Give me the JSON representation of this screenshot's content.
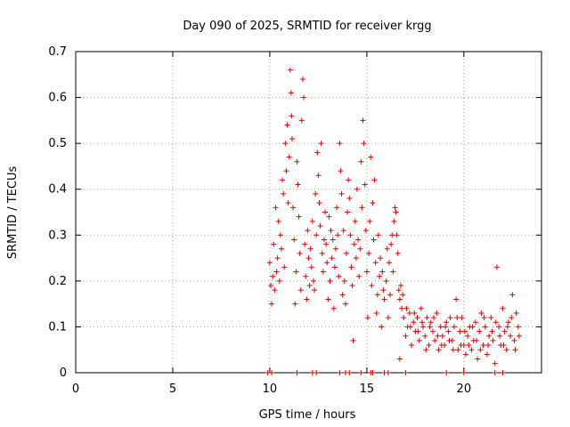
{
  "chart_data": {
    "type": "scatter",
    "title": "Day 090 of 2025, SRMTID for receiver krgg",
    "xlabel": "GPS time / hours",
    "ylabel": "SRMTID / TECUs",
    "xlim": [
      0,
      24
    ],
    "ylim": [
      0,
      0.7
    ],
    "xticks": [
      0,
      5,
      10,
      15,
      20
    ],
    "yticks": [
      0,
      0.1,
      0.2,
      0.3,
      0.4,
      0.5,
      0.6,
      0.7
    ],
    "xtick_labels": [
      "0",
      "5",
      "10",
      "15",
      "20"
    ],
    "ytick_labels": [
      "0",
      "0.1",
      "0.2",
      "0.3",
      "0.4",
      "0.5",
      "0.6",
      "0.7"
    ],
    "grid": true,
    "marker": "+",
    "color": "#e00000",
    "series": [
      {
        "name": "SRMTID",
        "points": [
          [
            9.9,
            0.0
          ],
          [
            10.1,
            0.0
          ],
          [
            11.4,
            0.0
          ],
          [
            12.2,
            0.0
          ],
          [
            12.4,
            0.0
          ],
          [
            13.6,
            0.0
          ],
          [
            13.9,
            0.0
          ],
          [
            14.1,
            0.0
          ],
          [
            14.7,
            0.0
          ],
          [
            15.2,
            0.0
          ],
          [
            15.3,
            0.0
          ],
          [
            15.9,
            0.0
          ],
          [
            16.1,
            0.0
          ],
          [
            17.0,
            0.0
          ],
          [
            19.1,
            0.0
          ],
          [
            20.0,
            0.0
          ],
          [
            21.6,
            0.0
          ],
          [
            22.0,
            0.0
          ],
          [
            16.7,
            0.03
          ],
          [
            10.0,
            0.24
          ],
          [
            10.05,
            0.19
          ],
          [
            10.1,
            0.15
          ],
          [
            10.15,
            0.21
          ],
          [
            10.2,
            0.28
          ],
          [
            10.25,
            0.18
          ],
          [
            10.3,
            0.36
          ],
          [
            10.35,
            0.22
          ],
          [
            10.4,
            0.25
          ],
          [
            10.45,
            0.33
          ],
          [
            10.5,
            0.2
          ],
          [
            10.55,
            0.3
          ],
          [
            10.6,
            0.27
          ],
          [
            10.65,
            0.42
          ],
          [
            10.7,
            0.39
          ],
          [
            10.75,
            0.23
          ],
          [
            10.8,
            0.5
          ],
          [
            10.85,
            0.44
          ],
          [
            10.9,
            0.54
          ],
          [
            10.95,
            0.37
          ],
          [
            11.0,
            0.47
          ],
          [
            11.05,
            0.66
          ],
          [
            11.1,
            0.61
          ],
          [
            11.12,
            0.56
          ],
          [
            11.15,
            0.51
          ],
          [
            11.2,
            0.36
          ],
          [
            11.25,
            0.29
          ],
          [
            11.3,
            0.15
          ],
          [
            11.35,
            0.22
          ],
          [
            11.4,
            0.46
          ],
          [
            11.45,
            0.41
          ],
          [
            11.5,
            0.34
          ],
          [
            11.55,
            0.26
          ],
          [
            11.6,
            0.18
          ],
          [
            11.65,
            0.55
          ],
          [
            11.7,
            0.64
          ],
          [
            11.75,
            0.6
          ],
          [
            11.8,
            0.28
          ],
          [
            11.85,
            0.21
          ],
          [
            11.9,
            0.16
          ],
          [
            11.95,
            0.31
          ],
          [
            12.0,
            0.25
          ],
          [
            12.05,
            0.19
          ],
          [
            12.1,
            0.27
          ],
          [
            12.15,
            0.23
          ],
          [
            12.2,
            0.33
          ],
          [
            12.25,
            0.2
          ],
          [
            12.3,
            0.18
          ],
          [
            12.35,
            0.39
          ],
          [
            12.4,
            0.3
          ],
          [
            12.45,
            0.48
          ],
          [
            12.5,
            0.43
          ],
          [
            12.55,
            0.37
          ],
          [
            12.6,
            0.32
          ],
          [
            12.65,
            0.5
          ],
          [
            12.7,
            0.26
          ],
          [
            12.75,
            0.22
          ],
          [
            12.8,
            0.29
          ],
          [
            12.85,
            0.35
          ],
          [
            12.9,
            0.28
          ],
          [
            12.95,
            0.24
          ],
          [
            13.0,
            0.16
          ],
          [
            13.05,
            0.34
          ],
          [
            13.1,
            0.2
          ],
          [
            13.15,
            0.31
          ],
          [
            13.2,
            0.25
          ],
          [
            13.25,
            0.29
          ],
          [
            13.3,
            0.14
          ],
          [
            13.35,
            0.23
          ],
          [
            13.4,
            0.27
          ],
          [
            13.45,
            0.36
          ],
          [
            13.5,
            0.3
          ],
          [
            13.55,
            0.21
          ],
          [
            13.6,
            0.5
          ],
          [
            13.65,
            0.44
          ],
          [
            13.7,
            0.39
          ],
          [
            13.75,
            0.17
          ],
          [
            13.8,
            0.31
          ],
          [
            13.85,
            0.2
          ],
          [
            13.9,
            0.15
          ],
          [
            13.95,
            0.26
          ],
          [
            14.0,
            0.35
          ],
          [
            14.05,
            0.42
          ],
          [
            14.1,
            0.38
          ],
          [
            14.15,
            0.3
          ],
          [
            14.2,
            0.23
          ],
          [
            14.25,
            0.19
          ],
          [
            14.3,
            0.07
          ],
          [
            14.35,
            0.28
          ],
          [
            14.4,
            0.33
          ],
          [
            14.45,
            0.25
          ],
          [
            14.5,
            0.4
          ],
          [
            14.55,
            0.29
          ],
          [
            14.6,
            0.21
          ],
          [
            14.65,
            0.27
          ],
          [
            14.7,
            0.46
          ],
          [
            14.75,
            0.36
          ],
          [
            14.8,
            0.55
          ],
          [
            14.85,
            0.5
          ],
          [
            14.9,
            0.41
          ],
          [
            14.95,
            0.31
          ],
          [
            15.0,
            0.22
          ],
          [
            15.05,
            0.12
          ],
          [
            15.1,
            0.26
          ],
          [
            15.15,
            0.33
          ],
          [
            15.2,
            0.47
          ],
          [
            15.25,
            0.19
          ],
          [
            15.3,
            0.37
          ],
          [
            15.35,
            0.29
          ],
          [
            15.4,
            0.42
          ],
          [
            15.45,
            0.24
          ],
          [
            15.5,
            0.13
          ],
          [
            15.55,
            0.17
          ],
          [
            15.6,
            0.3
          ],
          [
            15.65,
            0.21
          ],
          [
            15.7,
            0.25
          ],
          [
            15.75,
            0.1
          ],
          [
            15.8,
            0.22
          ],
          [
            15.85,
            0.18
          ],
          [
            15.9,
            0.16
          ],
          [
            16.0,
            0.2
          ],
          [
            16.05,
            0.27
          ],
          [
            16.1,
            0.12
          ],
          [
            16.15,
            0.24
          ],
          [
            16.2,
            0.17
          ],
          [
            16.25,
            0.28
          ],
          [
            16.3,
            0.3
          ],
          [
            16.35,
            0.22
          ],
          [
            16.4,
            0.33
          ],
          [
            16.45,
            0.36
          ],
          [
            16.5,
            0.35
          ],
          [
            16.55,
            0.3
          ],
          [
            16.6,
            0.26
          ],
          [
            16.65,
            0.18
          ],
          [
            16.7,
            0.16
          ],
          [
            16.75,
            0.19
          ],
          [
            16.8,
            0.14
          ],
          [
            16.85,
            0.17
          ],
          [
            16.9,
            0.12
          ],
          [
            17.0,
            0.08
          ],
          [
            17.1,
            0.1
          ],
          [
            17.2,
            0.13
          ],
          [
            17.3,
            0.06
          ],
          [
            17.4,
            0.11
          ],
          [
            17.5,
            0.09
          ],
          [
            17.6,
            0.12
          ],
          [
            17.7,
            0.07
          ],
          [
            17.8,
            0.14
          ],
          [
            17.9,
            0.1
          ],
          [
            18.0,
            0.08
          ],
          [
            18.1,
            0.12
          ],
          [
            18.2,
            0.06
          ],
          [
            18.3,
            0.11
          ],
          [
            18.4,
            0.09
          ],
          [
            18.5,
            0.07
          ],
          [
            18.6,
            0.13
          ],
          [
            18.7,
            0.05
          ],
          [
            18.8,
            0.1
          ],
          [
            18.9,
            0.08
          ],
          [
            19.0,
            0.06
          ],
          [
            19.1,
            0.11
          ],
          [
            19.2,
            0.09
          ],
          [
            19.3,
            0.12
          ],
          [
            19.4,
            0.07
          ],
          [
            19.5,
            0.1
          ],
          [
            19.6,
            0.16
          ],
          [
            19.7,
            0.05
          ],
          [
            19.8,
            0.09
          ],
          [
            19.9,
            0.12
          ],
          [
            20.0,
            0.06
          ],
          [
            20.1,
            0.04
          ],
          [
            20.2,
            0.08
          ],
          [
            20.3,
            0.1
          ],
          [
            20.4,
            0.05
          ],
          [
            20.5,
            0.07
          ],
          [
            20.6,
            0.11
          ],
          [
            20.7,
            0.03
          ],
          [
            20.8,
            0.09
          ],
          [
            20.9,
            0.13
          ],
          [
            21.0,
            0.06
          ],
          [
            21.1,
            0.1
          ],
          [
            21.2,
            0.04
          ],
          [
            21.3,
            0.08
          ],
          [
            21.4,
            0.12
          ],
          [
            21.5,
            0.07
          ],
          [
            21.6,
            0.02
          ],
          [
            21.7,
            0.23
          ],
          [
            21.8,
            0.1
          ],
          [
            21.9,
            0.06
          ],
          [
            22.0,
            0.14
          ],
          [
            22.1,
            0.09
          ],
          [
            22.2,
            0.05
          ],
          [
            22.3,
            0.11
          ],
          [
            22.4,
            0.08
          ],
          [
            22.5,
            0.17
          ],
          [
            22.6,
            0.07
          ],
          [
            22.7,
            0.13
          ],
          [
            22.8,
            0.1
          ],
          [
            17.05,
            0.14
          ],
          [
            17.25,
            0.1
          ],
          [
            17.45,
            0.13
          ],
          [
            17.65,
            0.09
          ],
          [
            17.85,
            0.11
          ],
          [
            18.05,
            0.05
          ],
          [
            18.25,
            0.1
          ],
          [
            18.45,
            0.12
          ],
          [
            18.65,
            0.08
          ],
          [
            18.85,
            0.06
          ],
          [
            19.05,
            0.1
          ],
          [
            19.25,
            0.07
          ],
          [
            19.45,
            0.05
          ],
          [
            19.65,
            0.12
          ],
          [
            19.85,
            0.06
          ],
          [
            20.05,
            0.09
          ],
          [
            20.25,
            0.06
          ],
          [
            20.45,
            0.1
          ],
          [
            20.65,
            0.07
          ],
          [
            20.85,
            0.05
          ],
          [
            21.05,
            0.12
          ],
          [
            21.25,
            0.06
          ],
          [
            21.45,
            0.09
          ],
          [
            21.65,
            0.11
          ],
          [
            21.85,
            0.08
          ],
          [
            22.05,
            0.06
          ],
          [
            22.25,
            0.1
          ],
          [
            22.45,
            0.12
          ],
          [
            22.65,
            0.05
          ],
          [
            22.85,
            0.08
          ]
        ]
      }
    ]
  }
}
